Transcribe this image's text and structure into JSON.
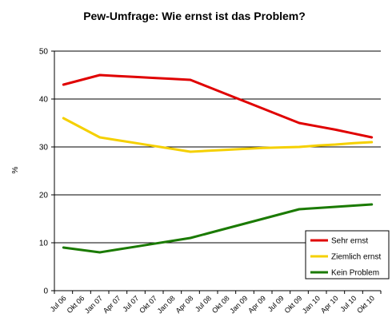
{
  "chart_data": {
    "type": "line",
    "title": "Pew-Umfrage: Wie ernst ist das Problem?",
    "xlabel": "",
    "ylabel": "%",
    "ylim": [
      0,
      50
    ],
    "yticks": [
      0,
      10,
      20,
      30,
      40,
      50
    ],
    "grid": true,
    "legend_position": "bottom-right",
    "categories": [
      "Jul 06",
      "Okt 06",
      "Jan 07",
      "Apr 07",
      "Jul 07",
      "Okt 07",
      "Jan 08",
      "Apr 08",
      "Jul 08",
      "Okt 08",
      "Jan 09",
      "Apr 09",
      "Jul 09",
      "Okt 09",
      "Jan 10",
      "Apr 10",
      "Jul 10",
      "Okt 10"
    ],
    "series": [
      {
        "name": "Sehr ernst",
        "color": "#e00000",
        "values": [
          43,
          44,
          45,
          44.8,
          44.6,
          44.4,
          44.2,
          44,
          42.5,
          41,
          39.5,
          38,
          36.5,
          35,
          34.3,
          33.6,
          32.8,
          32
        ]
      },
      {
        "name": "Ziemlich ernst",
        "color": "#f5d000",
        "values": [
          36,
          34,
          32,
          31.4,
          30.8,
          30.2,
          29.6,
          29,
          29.2,
          29.4,
          29.6,
          29.8,
          29.9,
          30,
          30.3,
          30.5,
          30.8,
          31
        ]
      },
      {
        "name": "Kein Problem",
        "color": "#1a7a00",
        "values": [
          9,
          8.5,
          8,
          8.6,
          9.2,
          9.8,
          10.4,
          11,
          12,
          13,
          14,
          15,
          16,
          17,
          17.25,
          17.5,
          17.75,
          18
        ]
      }
    ]
  }
}
